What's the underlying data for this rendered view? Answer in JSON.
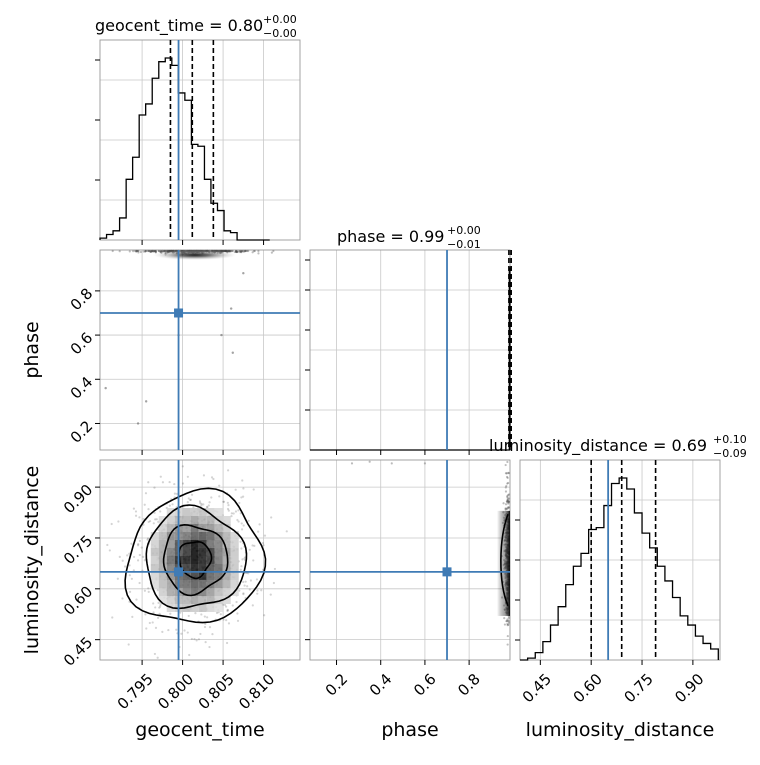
{
  "chart_data": {
    "type": "corner",
    "parameters": [
      "geocent_time",
      "phase",
      "luminosity_distance"
    ],
    "axis_labels": [
      "geocent_time",
      "phase",
      "luminosity_distance"
    ],
    "ranges": {
      "geocent_time": [
        0.7898,
        0.8145
      ],
      "phase": [
        0.08,
        0.985
      ],
      "luminosity_distance": [
        0.39,
        0.98
      ]
    },
    "ticks": {
      "geocent_time": [
        0.795,
        0.8,
        0.805,
        0.81
      ],
      "phase": [
        0.2,
        0.4,
        0.6,
        0.8
      ],
      "luminosity_distance": [
        0.45,
        0.6,
        0.75,
        0.9
      ]
    },
    "tick_labels": {
      "geocent_time": [
        "0.795",
        "0.800",
        "0.805",
        "0.810"
      ],
      "phase": [
        "0.2",
        "0.4",
        "0.6",
        "0.8"
      ],
      "luminosity_distance": [
        "0.45",
        "0.60",
        "0.75",
        "0.90"
      ]
    },
    "truths": {
      "geocent_time": 0.7995,
      "phase": 0.7,
      "luminosity_distance": 0.65
    },
    "titles": [
      {
        "text": "geocent_time = 0.80",
        "sup": "+0.00",
        "sub": "−0.00"
      },
      {
        "text": "phase = 0.99",
        "sup": "+0.00",
        "sub": "−0.01"
      },
      {
        "text": "luminosity_distance = 0.69",
        "sup": "+0.10",
        "sub": "−0.09"
      }
    ],
    "quantiles": {
      "geocent_time": [
        0.7985,
        0.8012,
        0.8038
      ],
      "phase": [
        0.98,
        0.99,
        0.99
      ],
      "luminosity_distance": [
        0.6,
        0.69,
        0.79
      ]
    },
    "histograms": {
      "geocent_time": {
        "edges": [
          0.7898,
          0.79061,
          0.79141,
          0.79222,
          0.79303,
          0.79383,
          0.79464,
          0.79544,
          0.79625,
          0.79706,
          0.79786,
          0.79867,
          0.79947,
          0.80028,
          0.80109,
          0.80189,
          0.8027,
          0.8035,
          0.80431,
          0.80512,
          0.80592,
          0.80673,
          0.80753,
          0.80834,
          0.80915,
          0.80995,
          0.81076
        ],
        "counts": [
          1,
          3,
          5,
          12,
          33,
          45,
          68,
          74,
          88,
          97,
          99,
          95,
          80,
          76,
          52,
          51,
          33,
          20,
          16,
          5,
          4,
          0,
          0,
          0,
          0,
          0
        ]
      },
      "phase": {
        "edges": [
          0.08,
          0.962,
          0.9645,
          0.967,
          0.9695,
          0.972,
          0.9745,
          0.977,
          0.9795,
          0.982,
          0.985
        ],
        "counts": [
          0,
          0,
          0,
          0,
          0,
          0,
          0,
          0,
          0,
          100
        ]
      },
      "luminosity_distance": {
        "edges": [
          0.39,
          0.4125,
          0.435,
          0.4575,
          0.48,
          0.5025,
          0.525,
          0.5475,
          0.57,
          0.5925,
          0.615,
          0.6375,
          0.66,
          0.6825,
          0.705,
          0.7275,
          0.75,
          0.7725,
          0.795,
          0.8175,
          0.84,
          0.8625,
          0.885,
          0.9075,
          0.93,
          0.9525,
          0.975
        ],
        "counts": [
          0,
          1,
          4,
          10,
          19,
          29,
          41,
          51,
          58,
          71,
          72,
          84,
          96,
          99,
          93,
          80,
          69,
          61,
          51,
          43,
          34,
          24,
          19,
          13,
          9,
          6
        ]
      }
    },
    "grid": true
  }
}
